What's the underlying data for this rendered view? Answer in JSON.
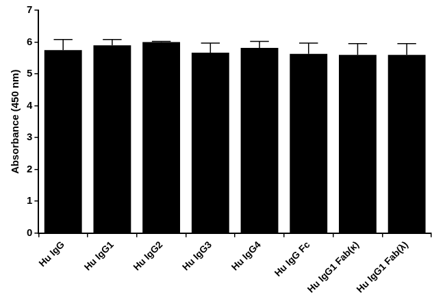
{
  "chart_data": {
    "type": "bar",
    "y_label": "Absorbance (450 nm)",
    "categories": [
      "Hu IgG",
      "Hu IgG1",
      "Hu IgG2",
      "Hu IgG3",
      "Hu IgG4",
      "Hu IgG Fc",
      "Hu IgG1 Fab(κ)",
      "Hu IgG1 Fab(λ)"
    ],
    "values": [
      5.75,
      5.9,
      6.0,
      5.67,
      5.82,
      5.63,
      5.6,
      5.6
    ],
    "errors": [
      0.33,
      0.18,
      0.02,
      0.3,
      0.2,
      0.34,
      0.35,
      0.35
    ],
    "color": "#000000",
    "ylim": [
      0,
      7
    ],
    "yticks": [
      0,
      1,
      2,
      3,
      4,
      5,
      6,
      7
    ],
    "grid": false
  }
}
